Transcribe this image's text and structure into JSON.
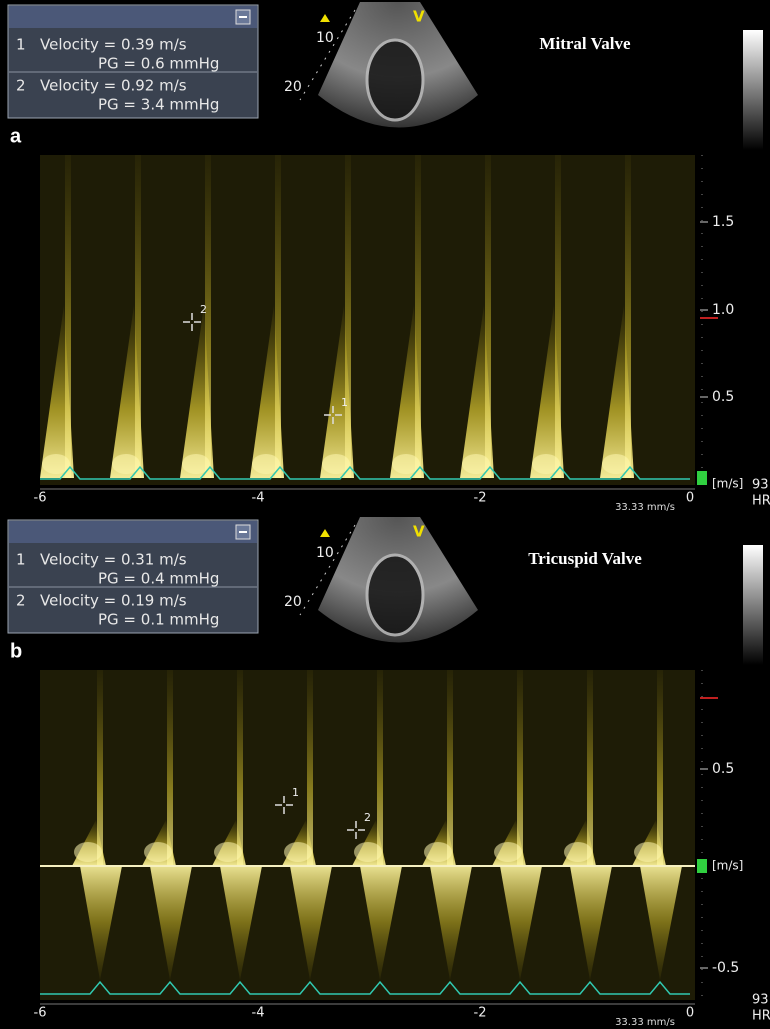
{
  "panels": [
    {
      "label": "a",
      "title": "Mitral Valve",
      "measurements": [
        {
          "index": "1",
          "velocity": "Velocity = 0.39 m/s",
          "pg": "PG = 0.6  mmHg"
        },
        {
          "index": "2",
          "velocity": "Velocity = 0.92 m/s",
          "pg": "PG = 3.4  mmHg"
        }
      ],
      "depth_labels": [
        "10",
        "20"
      ],
      "view_marker": "V",
      "y_labels": [
        "1.5",
        "1.0",
        "0.5"
      ],
      "unit": "[m/s]",
      "hr_value": "93",
      "hr_label": "HR",
      "x_labels": [
        "-6",
        "-4",
        "-2",
        "0"
      ],
      "sweep": "33.33 mm/s",
      "cursors": [
        "2",
        "1"
      ]
    },
    {
      "label": "b",
      "title": "Tricuspid Valve",
      "measurements": [
        {
          "index": "1",
          "velocity": "Velocity = 0.31 m/s",
          "pg": "PG = 0.4  mmHg"
        },
        {
          "index": "2",
          "velocity": "Velocity = 0.19 m/s",
          "pg": "PG = 0.1  mmHg"
        }
      ],
      "depth_labels": [
        "10",
        "20"
      ],
      "view_marker": "V",
      "y_labels": [
        "0.5",
        "-0.5"
      ],
      "unit": "[m/s]",
      "hr_value": "93",
      "hr_label": "HR",
      "x_labels": [
        "-6",
        "-4",
        "-2",
        "0"
      ],
      "sweep": "33.33 mm/s",
      "cursors": [
        "1",
        "2"
      ]
    }
  ]
}
